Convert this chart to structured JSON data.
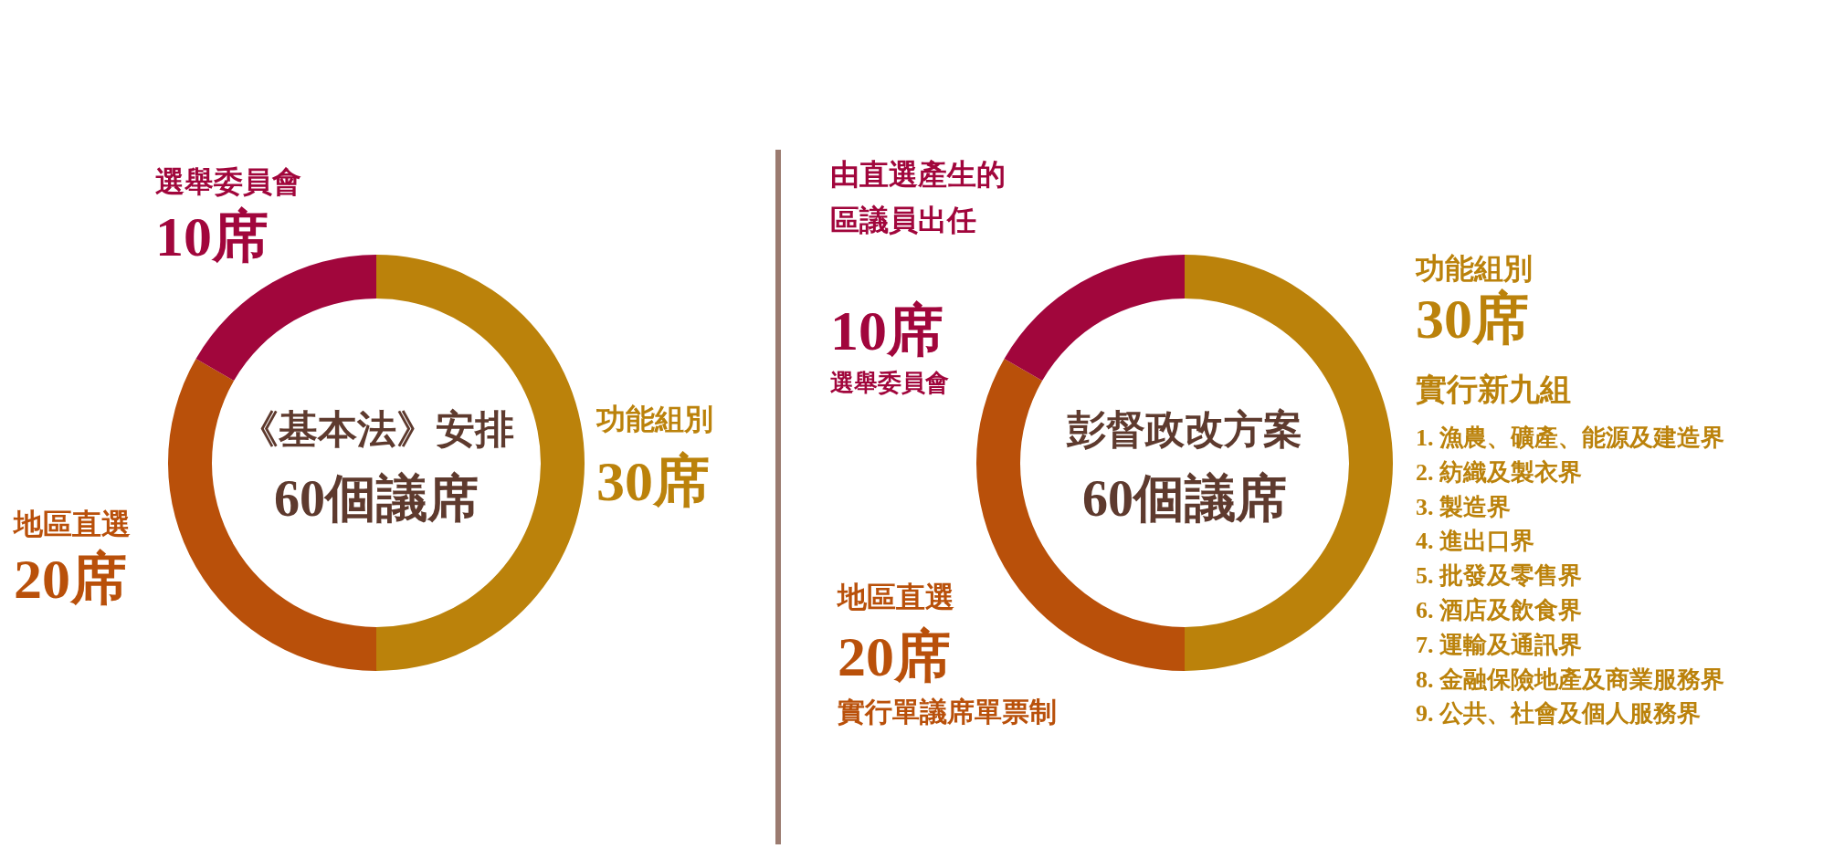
{
  "chart_data": [
    {
      "type": "donut",
      "title": "《基本法》安排",
      "subtitle": "60個議席",
      "categories": [
        "功能組別",
        "地區直選",
        "選舉委員會"
      ],
      "values": [
        30,
        20,
        10
      ],
      "colors": [
        "#bb820b",
        "#b9500a",
        "#a1063c"
      ],
      "value_labels": [
        "30席",
        "20席",
        "10席"
      ]
    },
    {
      "type": "donut",
      "title": "彭督政改方案",
      "subtitle": "60個議席",
      "categories": [
        "功能組別",
        "地區直選",
        "由直選產生的區議員出任"
      ],
      "values": [
        30,
        20,
        10
      ],
      "colors": [
        "#bb820b",
        "#b9500a",
        "#a1063c"
      ],
      "value_labels": [
        "30席",
        "20席",
        "10席"
      ],
      "annotations": [
        "選舉委員會",
        "實行單議席單票制",
        "實行新九組",
        "1. 漁農、礦產、能源及建造界",
        "2. 紡織及製衣界",
        "3. 製造界",
        "4. 進出口界",
        "5. 批發及零售界",
        "6. 酒店及飲食界",
        "7. 運輸及通訊界",
        "8. 金融保險地產及商業服務界",
        "9. 公共、社會及個人服務界"
      ]
    }
  ]
}
